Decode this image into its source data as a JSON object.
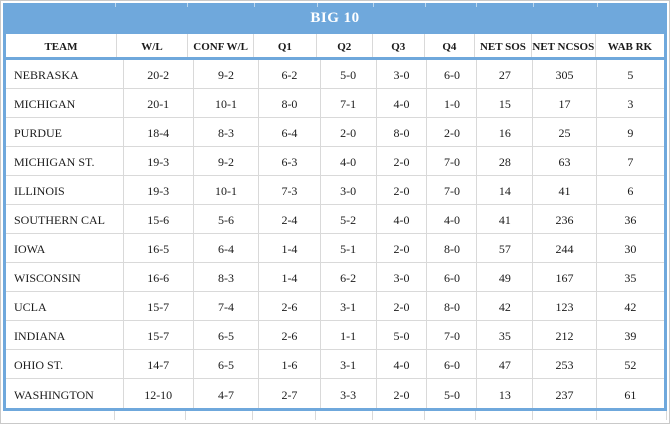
{
  "title": "BIG 10",
  "colors": {
    "header_blue": "#6FA8DC",
    "grid_line": "#D9D9D9",
    "title_text": "#FFFFFF",
    "body_text": "#1B1B1B"
  },
  "chart_data": {
    "type": "table",
    "title": "BIG 10",
    "columns": [
      "TEAM",
      "W/L",
      "CONF W/L",
      "Q1",
      "Q2",
      "Q3",
      "Q4",
      "NET SOS",
      "NET NCSOS",
      "WAB RK"
    ],
    "rows": [
      [
        "NEBRASKA",
        "20-2",
        "9-2",
        "6-2",
        "5-0",
        "3-0",
        "6-0",
        "27",
        "305",
        "5"
      ],
      [
        "MICHIGAN",
        "20-1",
        "10-1",
        "8-0",
        "7-1",
        "4-0",
        "1-0",
        "15",
        "17",
        "3"
      ],
      [
        "PURDUE",
        "18-4",
        "8-3",
        "6-4",
        "2-0",
        "8-0",
        "2-0",
        "16",
        "25",
        "9"
      ],
      [
        "MICHIGAN ST.",
        "19-3",
        "9-2",
        "6-3",
        "4-0",
        "2-0",
        "7-0",
        "28",
        "63",
        "7"
      ],
      [
        "ILLINOIS",
        "19-3",
        "10-1",
        "7-3",
        "3-0",
        "2-0",
        "7-0",
        "14",
        "41",
        "6"
      ],
      [
        "SOUTHERN CAL",
        "15-6",
        "5-6",
        "2-4",
        "5-2",
        "4-0",
        "4-0",
        "41",
        "236",
        "36"
      ],
      [
        "IOWA",
        "16-5",
        "6-4",
        "1-4",
        "5-1",
        "2-0",
        "8-0",
        "57",
        "244",
        "30"
      ],
      [
        "WISCONSIN",
        "16-6",
        "8-3",
        "1-4",
        "6-2",
        "3-0",
        "6-0",
        "49",
        "167",
        "35"
      ],
      [
        "UCLA",
        "15-7",
        "7-4",
        "2-6",
        "3-1",
        "2-0",
        "8-0",
        "42",
        "123",
        "42"
      ],
      [
        "INDIANA",
        "15-7",
        "6-5",
        "2-6",
        "1-1",
        "5-0",
        "7-0",
        "35",
        "212",
        "39"
      ],
      [
        "OHIO ST.",
        "14-7",
        "6-5",
        "1-6",
        "3-1",
        "4-0",
        "6-0",
        "47",
        "253",
        "52"
      ],
      [
        "WASHINGTON",
        "12-10",
        "4-7",
        "2-7",
        "3-3",
        "2-0",
        "5-0",
        "13",
        "237",
        "61"
      ]
    ]
  }
}
